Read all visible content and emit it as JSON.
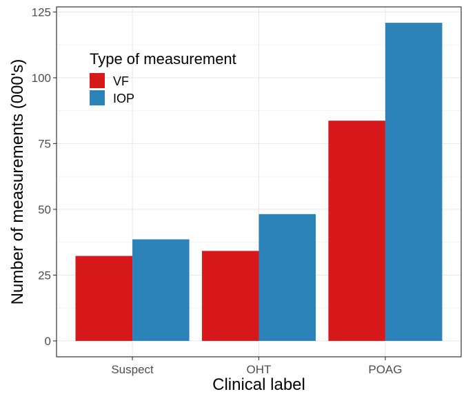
{
  "chart_data": {
    "type": "bar",
    "title": "",
    "xlabel": "Clinical label",
    "ylabel": "Number of measurements (000's)",
    "categories": [
      "Suspect",
      "OHT",
      "POAG"
    ],
    "series": [
      {
        "name": "VF",
        "values": [
          32.3,
          34.2,
          83.7
        ],
        "color": "#d7191c"
      },
      {
        "name": "IOP",
        "values": [
          38.6,
          48.2,
          120.9
        ],
        "color": "#2b83ba"
      }
    ],
    "ylim": [
      -6.04,
      126.94
    ],
    "yticks": [
      0,
      25,
      50,
      75,
      100,
      125
    ],
    "grid": true,
    "legend": {
      "title": "Type of measurement",
      "placement": "top-left inside"
    }
  }
}
